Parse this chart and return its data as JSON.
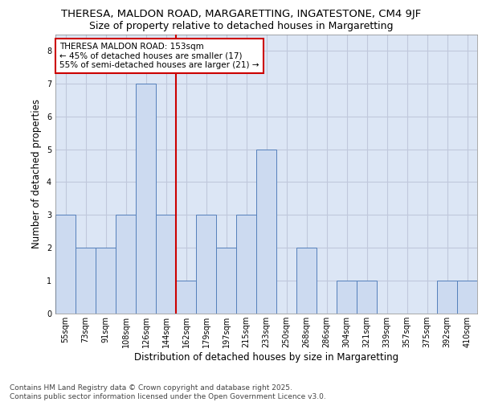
{
  "title_line1": "THERESA, MALDON ROAD, MARGARETTING, INGATESTONE, CM4 9JF",
  "title_line2": "Size of property relative to detached houses in Margaretting",
  "xlabel": "Distribution of detached houses by size in Margaretting",
  "ylabel": "Number of detached properties",
  "categories": [
    "55sqm",
    "73sqm",
    "91sqm",
    "108sqm",
    "126sqm",
    "144sqm",
    "162sqm",
    "179sqm",
    "197sqm",
    "215sqm",
    "233sqm",
    "250sqm",
    "268sqm",
    "286sqm",
    "304sqm",
    "321sqm",
    "339sqm",
    "357sqm",
    "375sqm",
    "392sqm",
    "410sqm"
  ],
  "values": [
    3,
    2,
    2,
    3,
    7,
    3,
    1,
    3,
    2,
    3,
    5,
    0,
    2,
    0,
    1,
    1,
    0,
    0,
    0,
    1,
    1
  ],
  "bar_color": "#ccdaf0",
  "bar_edge_color": "#5580bb",
  "vline_x": 5.5,
  "vline_color": "#cc0000",
  "annotation_text": "THERESA MALDON ROAD: 153sqm\n← 45% of detached houses are smaller (17)\n55% of semi-detached houses are larger (21) →",
  "annotation_box_color": "#ffffff",
  "annotation_box_edge_color": "#cc0000",
  "ylim": [
    0,
    8.5
  ],
  "yticks": [
    0,
    1,
    2,
    3,
    4,
    5,
    6,
    7,
    8
  ],
  "grid_color": "#c0c8dc",
  "bg_color": "#dce6f5",
  "footer_text": "Contains HM Land Registry data © Crown copyright and database right 2025.\nContains public sector information licensed under the Open Government Licence v3.0.",
  "title_fontsize": 9.5,
  "subtitle_fontsize": 9,
  "axis_label_fontsize": 8.5,
  "tick_fontsize": 7,
  "annotation_fontsize": 7.5,
  "footer_fontsize": 6.5
}
